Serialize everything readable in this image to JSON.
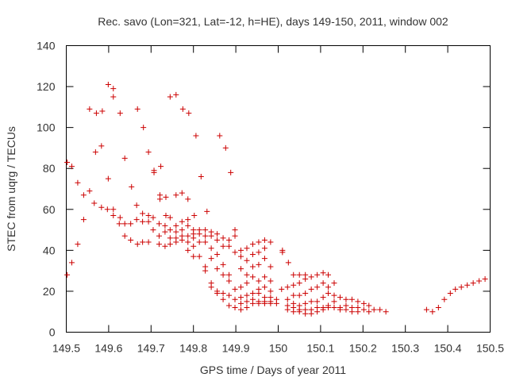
{
  "chart_data": {
    "type": "scatter",
    "title": "Rec. savo (Lon=321, Lat=-12, h=HE), days 149-150, 2011, window 002",
    "xlabel": "GPS time / Days of year 2011",
    "ylabel": "STEC from uqrg / TECUs",
    "xlim": [
      149.5,
      150.5
    ],
    "ylim": [
      0,
      140
    ],
    "xticks": [
      "149.5",
      "149.6",
      "149.7",
      "149.8",
      "149.9",
      "150",
      "150.1",
      "150.2",
      "150.3",
      "150.4",
      "150.5"
    ],
    "yticks": [
      "0",
      "20",
      "40",
      "60",
      "80",
      "100",
      "120",
      "140"
    ],
    "grid": false,
    "marker": "plus",
    "color": "#cc0000",
    "points": [
      [
        149.502,
        28
      ],
      [
        149.502,
        83
      ],
      [
        149.513,
        34
      ],
      [
        149.513,
        81
      ],
      [
        149.527,
        43
      ],
      [
        149.527,
        73
      ],
      [
        149.541,
        55
      ],
      [
        149.541,
        67
      ],
      [
        149.555,
        69
      ],
      [
        149.555,
        109
      ],
      [
        149.566,
        63
      ],
      [
        149.569,
        88
      ],
      [
        149.571,
        107
      ],
      [
        149.583,
        61
      ],
      [
        149.583,
        91
      ],
      [
        149.585,
        108
      ],
      [
        149.597,
        60
      ],
      [
        149.599,
        75
      ],
      [
        149.599,
        121
      ],
      [
        149.611,
        57
      ],
      [
        149.611,
        60
      ],
      [
        149.611,
        115
      ],
      [
        149.611,
        119
      ],
      [
        149.625,
        53
      ],
      [
        149.627,
        56
      ],
      [
        149.627,
        107
      ],
      [
        149.638,
        47
      ],
      [
        149.638,
        53
      ],
      [
        149.638,
        85
      ],
      [
        149.652,
        45
      ],
      [
        149.652,
        53
      ],
      [
        149.654,
        71
      ],
      [
        149.668,
        43
      ],
      [
        149.666,
        55
      ],
      [
        149.666,
        62
      ],
      [
        149.668,
        109
      ],
      [
        149.68,
        44
      ],
      [
        149.68,
        54
      ],
      [
        149.68,
        58
      ],
      [
        149.682,
        100
      ],
      [
        149.694,
        44
      ],
      [
        149.694,
        54
      ],
      [
        149.694,
        57
      ],
      [
        149.694,
        88
      ],
      [
        149.705,
        50
      ],
      [
        149.705,
        56
      ],
      [
        149.707,
        78
      ],
      [
        149.707,
        79
      ],
      [
        149.719,
        43
      ],
      [
        149.719,
        47
      ],
      [
        149.719,
        53
      ],
      [
        149.721,
        65
      ],
      [
        149.721,
        67
      ],
      [
        149.723,
        81
      ],
      [
        149.733,
        42
      ],
      [
        149.733,
        49
      ],
      [
        149.733,
        52
      ],
      [
        149.735,
        57
      ],
      [
        149.735,
        66
      ],
      [
        149.745,
        43
      ],
      [
        149.745,
        46
      ],
      [
        149.745,
        50
      ],
      [
        149.745,
        56
      ],
      [
        149.745,
        115
      ],
      [
        149.759,
        44
      ],
      [
        149.759,
        46
      ],
      [
        149.759,
        49
      ],
      [
        149.759,
        52
      ],
      [
        149.759,
        67
      ],
      [
        149.759,
        116
      ],
      [
        149.773,
        45
      ],
      [
        149.773,
        47
      ],
      [
        149.773,
        50
      ],
      [
        149.773,
        54
      ],
      [
        149.773,
        68
      ],
      [
        149.775,
        109
      ],
      [
        149.787,
        40
      ],
      [
        149.787,
        44
      ],
      [
        149.787,
        47
      ],
      [
        149.787,
        52
      ],
      [
        149.787,
        55
      ],
      [
        149.787,
        65
      ],
      [
        149.789,
        107
      ],
      [
        149.8,
        37
      ],
      [
        149.8,
        42
      ],
      [
        149.8,
        46
      ],
      [
        149.8,
        48
      ],
      [
        149.8,
        50
      ],
      [
        149.802,
        57
      ],
      [
        149.806,
        96
      ],
      [
        149.814,
        37
      ],
      [
        149.814,
        44
      ],
      [
        149.814,
        48
      ],
      [
        149.814,
        50
      ],
      [
        149.818,
        76
      ],
      [
        149.828,
        30
      ],
      [
        149.828,
        32
      ],
      [
        149.828,
        44
      ],
      [
        149.828,
        47
      ],
      [
        149.828,
        50
      ],
      [
        149.832,
        59
      ],
      [
        149.842,
        22
      ],
      [
        149.842,
        24
      ],
      [
        149.842,
        36
      ],
      [
        149.842,
        41
      ],
      [
        149.842,
        47
      ],
      [
        149.842,
        49
      ],
      [
        149.856,
        19
      ],
      [
        149.856,
        20
      ],
      [
        149.856,
        31
      ],
      [
        149.856,
        38
      ],
      [
        149.856,
        45
      ],
      [
        149.856,
        48
      ],
      [
        149.862,
        96
      ],
      [
        149.87,
        16
      ],
      [
        149.87,
        19
      ],
      [
        149.87,
        28
      ],
      [
        149.87,
        33
      ],
      [
        149.87,
        42
      ],
      [
        149.87,
        46
      ],
      [
        149.876,
        90
      ],
      [
        149.884,
        13
      ],
      [
        149.884,
        18
      ],
      [
        149.884,
        25
      ],
      [
        149.884,
        28
      ],
      [
        149.884,
        42
      ],
      [
        149.884,
        45
      ],
      [
        149.888,
        78
      ],
      [
        149.898,
        12
      ],
      [
        149.898,
        16
      ],
      [
        149.898,
        21
      ],
      [
        149.898,
        39
      ],
      [
        149.898,
        47
      ],
      [
        149.898,
        50
      ],
      [
        149.912,
        11
      ],
      [
        149.912,
        14
      ],
      [
        149.912,
        17
      ],
      [
        149.912,
        22
      ],
      [
        149.912,
        31
      ],
      [
        149.912,
        37
      ],
      [
        149.912,
        40
      ],
      [
        149.926,
        12
      ],
      [
        149.926,
        15
      ],
      [
        149.926,
        18
      ],
      [
        149.926,
        24
      ],
      [
        149.926,
        28
      ],
      [
        149.926,
        35
      ],
      [
        149.926,
        41
      ],
      [
        149.94,
        14
      ],
      [
        149.94,
        16
      ],
      [
        149.94,
        19
      ],
      [
        149.94,
        27
      ],
      [
        149.94,
        32
      ],
      [
        149.94,
        38
      ],
      [
        149.94,
        43
      ],
      [
        149.954,
        14
      ],
      [
        149.954,
        15
      ],
      [
        149.954,
        19
      ],
      [
        149.954,
        21
      ],
      [
        149.954,
        25
      ],
      [
        149.954,
        33
      ],
      [
        149.954,
        39
      ],
      [
        149.954,
        44
      ],
      [
        149.968,
        14
      ],
      [
        149.968,
        15
      ],
      [
        149.968,
        17
      ],
      [
        149.968,
        22
      ],
      [
        149.968,
        27
      ],
      [
        149.968,
        36
      ],
      [
        149.968,
        41
      ],
      [
        149.968,
        45
      ],
      [
        149.982,
        14
      ],
      [
        149.982,
        15
      ],
      [
        149.982,
        17
      ],
      [
        149.982,
        20
      ],
      [
        149.982,
        25
      ],
      [
        149.982,
        32
      ],
      [
        149.982,
        44
      ],
      [
        149.996,
        14
      ],
      [
        149.996,
        16
      ],
      [
        150.008,
        21
      ],
      [
        150.01,
        39
      ],
      [
        150.01,
        40
      ],
      [
        150.022,
        11
      ],
      [
        150.022,
        13
      ],
      [
        150.022,
        16
      ],
      [
        150.022,
        22
      ],
      [
        150.024,
        34
      ],
      [
        150.036,
        10
      ],
      [
        150.036,
        12
      ],
      [
        150.036,
        14
      ],
      [
        150.036,
        18
      ],
      [
        150.036,
        23
      ],
      [
        150.036,
        28
      ],
      [
        150.05,
        10
      ],
      [
        150.05,
        11
      ],
      [
        150.05,
        13
      ],
      [
        150.05,
        18
      ],
      [
        150.05,
        24
      ],
      [
        150.05,
        28
      ],
      [
        150.064,
        9
      ],
      [
        150.064,
        11
      ],
      [
        150.064,
        14
      ],
      [
        150.064,
        19
      ],
      [
        150.064,
        26
      ],
      [
        150.064,
        28
      ],
      [
        150.078,
        9
      ],
      [
        150.078,
        11
      ],
      [
        150.078,
        15
      ],
      [
        150.078,
        21
      ],
      [
        150.078,
        27
      ],
      [
        150.092,
        10
      ],
      [
        150.092,
        12
      ],
      [
        150.092,
        15
      ],
      [
        150.092,
        22
      ],
      [
        150.092,
        28
      ],
      [
        150.106,
        11
      ],
      [
        150.106,
        12
      ],
      [
        150.106,
        17
      ],
      [
        150.106,
        24
      ],
      [
        150.106,
        29
      ],
      [
        150.118,
        12
      ],
      [
        150.118,
        13
      ],
      [
        150.118,
        19
      ],
      [
        150.118,
        22
      ],
      [
        150.118,
        28
      ],
      [
        150.132,
        12
      ],
      [
        150.132,
        15
      ],
      [
        150.132,
        18
      ],
      [
        150.132,
        24
      ],
      [
        150.146,
        11
      ],
      [
        150.146,
        12
      ],
      [
        150.146,
        17
      ],
      [
        150.16,
        11
      ],
      [
        150.16,
        13
      ],
      [
        150.16,
        16
      ],
      [
        150.174,
        10
      ],
      [
        150.174,
        12
      ],
      [
        150.174,
        16
      ],
      [
        150.188,
        10
      ],
      [
        150.188,
        12
      ],
      [
        150.188,
        15
      ],
      [
        150.202,
        11
      ],
      [
        150.202,
        14
      ],
      [
        150.214,
        10
      ],
      [
        150.214,
        13
      ],
      [
        150.226,
        11
      ],
      [
        150.24,
        11
      ],
      [
        150.254,
        10
      ],
      [
        150.35,
        11
      ],
      [
        150.364,
        10
      ],
      [
        150.378,
        12
      ],
      [
        150.392,
        16
      ],
      [
        150.406,
        19
      ],
      [
        150.418,
        21
      ],
      [
        150.432,
        22
      ],
      [
        150.446,
        23
      ],
      [
        150.46,
        24
      ],
      [
        150.474,
        25
      ],
      [
        150.488,
        26
      ]
    ]
  }
}
